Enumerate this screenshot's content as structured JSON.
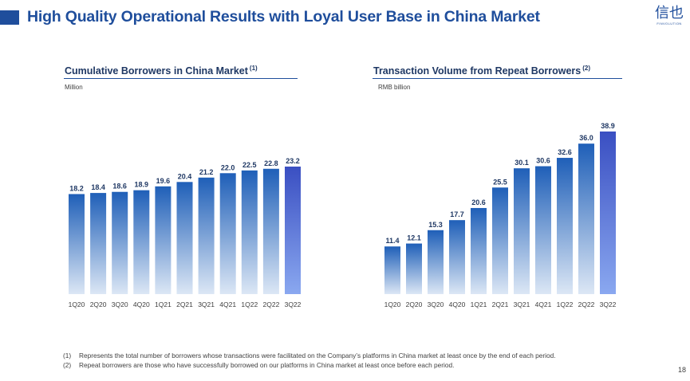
{
  "header": {
    "title": "High Quality Operational Results with Loyal User Base in China Market",
    "logo_text": "信也",
    "logo_subtext": "FINVOLUTION"
  },
  "colors": {
    "accent": "#1f4e9c",
    "bar_top": "#1f5fb8",
    "bar_bottom": "#dce7f5",
    "highlight_top": "#3a4fc2",
    "highlight_bottom": "#8aa8f0"
  },
  "left_chart": {
    "title": "Cumulative Borrowers in China Market",
    "footnote_ref": "(1)",
    "unit": "Million"
  },
  "right_chart": {
    "title": "Transaction Volume from Repeat Borrowers",
    "footnote_ref": "(2)",
    "unit": "RMB billion"
  },
  "chart_data": [
    {
      "type": "bar",
      "title": "Cumulative Borrowers in China Market",
      "ylabel": "Million",
      "categories": [
        "1Q20",
        "2Q20",
        "3Q20",
        "4Q20",
        "1Q21",
        "2Q21",
        "3Q21",
        "4Q21",
        "1Q22",
        "2Q22",
        "3Q22"
      ],
      "values": [
        18.2,
        18.4,
        18.6,
        18.9,
        19.6,
        20.4,
        21.2,
        22.0,
        22.5,
        22.8,
        23.2
      ],
      "labels": [
        "18.2",
        "18.4",
        "18.6",
        "18.9",
        "19.6",
        "20.4",
        "21.2",
        "22.0",
        "22.5",
        "22.8",
        "23.2"
      ],
      "ylim": [
        0,
        23.2
      ],
      "highlight_last": true,
      "grid": false
    },
    {
      "type": "bar",
      "title": "Transaction Volume from Repeat Borrowers",
      "ylabel": "RMB billion",
      "categories": [
        "1Q20",
        "2Q20",
        "3Q20",
        "4Q20",
        "1Q21",
        "2Q21",
        "3Q21",
        "4Q21",
        "1Q22",
        "2Q22",
        "3Q22"
      ],
      "values": [
        11.4,
        12.1,
        15.3,
        17.7,
        20.6,
        25.5,
        30.1,
        30.6,
        32.6,
        36.0,
        38.9
      ],
      "labels": [
        "11.4",
        "12.1",
        "15.3",
        "17.7",
        "20.6",
        "25.5",
        "30.1",
        "30.6",
        "32.6",
        "36.0",
        "38.9"
      ],
      "ylim": [
        0,
        38.9
      ],
      "highlight_last": true,
      "grid": false
    }
  ],
  "footnotes": [
    {
      "num": "(1)",
      "text": "Represents the total number of borrowers whose transactions were facilitated on the Company’s platforms in China market at least once by the end of each period."
    },
    {
      "num": "(2)",
      "text": "Repeat borrowers are those who have successfully borrowed on our platforms in China market at least once before each period."
    }
  ],
  "page_number": "18"
}
